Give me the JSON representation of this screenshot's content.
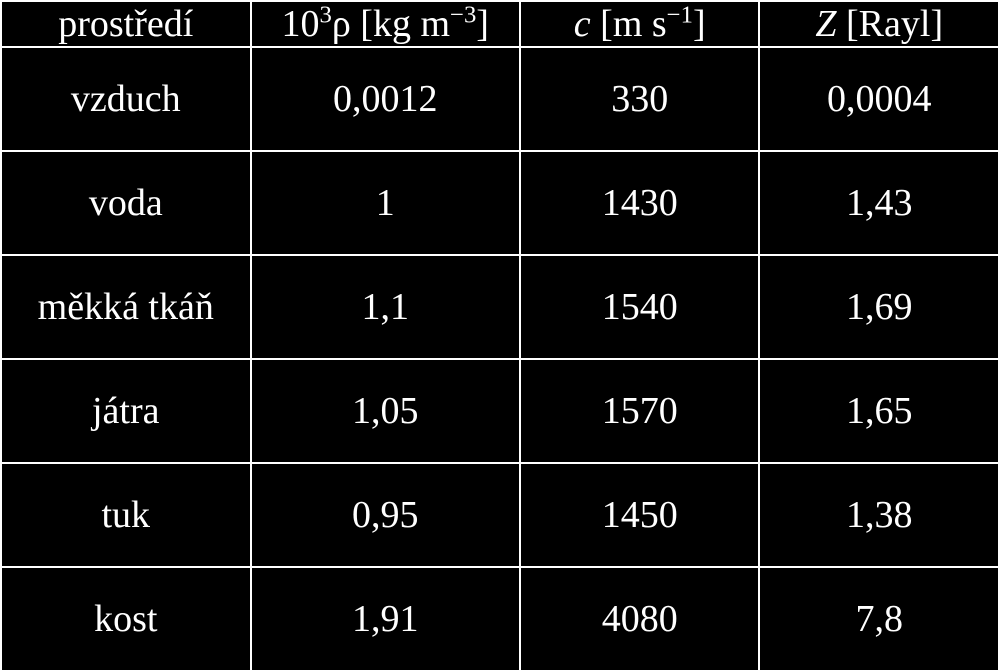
{
  "table": {
    "background_color": "#000000",
    "text_color": "#ffffff",
    "border_color": "#ffffff",
    "border_width": 2,
    "font_family": "Times New Roman",
    "font_size": 38,
    "columns": [
      {
        "key": "prostredi",
        "header_plain": "prostředí",
        "header_html": "prostředí",
        "width_pct": 25,
        "align": "center"
      },
      {
        "key": "density",
        "header_plain": "10^3 ρ [kg m^-3]",
        "header_html": "10<sup>3</sup>ρ [kg m<sup>&minus;3</sup>]",
        "width_pct": 27,
        "align": "center"
      },
      {
        "key": "c",
        "header_plain": "c [m s^-1]",
        "header_html": "<span class=\"italic\">c</span> [m s<sup>&minus;1</sup>]",
        "width_pct": 24,
        "align": "center"
      },
      {
        "key": "z",
        "header_plain": "Z [Rayl]",
        "header_html": "<span class=\"italic\">Z</span> [Rayl]",
        "width_pct": 24,
        "align": "center"
      }
    ],
    "rows": [
      {
        "prostredi": "vzduch",
        "density": "0,0012",
        "c": "330",
        "z": "0,0004"
      },
      {
        "prostredi": "voda",
        "density": "1",
        "c": "1430",
        "z": "1,43"
      },
      {
        "prostredi": "měkká tkáň",
        "density": "1,1",
        "c": "1540",
        "z": "1,69"
      },
      {
        "prostredi": "játra",
        "density": "1,05",
        "c": "1570",
        "z": "1,65"
      },
      {
        "prostredi": "tuk",
        "density": "0,95",
        "c": "1450",
        "z": "1,38"
      },
      {
        "prostredi": "kost",
        "density": "1,91",
        "c": "4080",
        "z": "7,8"
      }
    ]
  }
}
